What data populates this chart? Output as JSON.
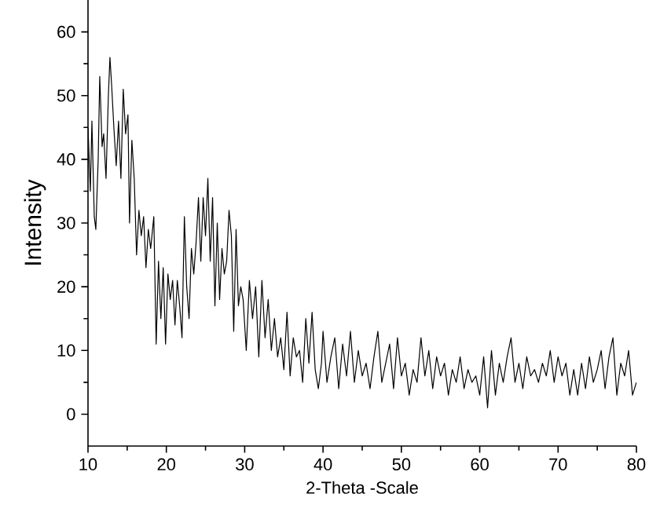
{
  "chart_data": {
    "type": "line",
    "xlabel": "2-Theta -Scale",
    "ylabel": "Intensity",
    "xlim": [
      10,
      80
    ],
    "ylim": [
      -5,
      65
    ],
    "xticks": [
      10,
      20,
      30,
      40,
      50,
      60,
      70,
      80
    ],
    "yticks": [
      0,
      10,
      20,
      30,
      40,
      50,
      60
    ],
    "color": "#000000",
    "marker": "none",
    "line_style": "solid",
    "grid": false,
    "x": [
      10,
      10.3,
      10.5,
      10.8,
      11,
      11.3,
      11.5,
      11.8,
      12,
      12.3,
      12.6,
      12.8,
      13,
      13.3,
      13.6,
      13.9,
      14.2,
      14.5,
      14.8,
      15.1,
      15.3,
      15.6,
      15.9,
      16.2,
      16.5,
      16.8,
      17.1,
      17.4,
      17.7,
      18,
      18.4,
      18.7,
      19,
      19.3,
      19.6,
      19.9,
      20.2,
      20.5,
      20.8,
      21.1,
      21.4,
      21.7,
      22,
      22.3,
      22.6,
      22.9,
      23.2,
      23.5,
      23.8,
      24.1,
      24.4,
      24.7,
      25,
      25.3,
      25.6,
      25.9,
      26.2,
      26.5,
      26.8,
      27.1,
      27.4,
      27.7,
      28,
      28.3,
      28.6,
      28.9,
      29.2,
      29.5,
      29.8,
      30.2,
      30.6,
      31,
      31.4,
      31.8,
      32.2,
      32.6,
      33,
      33.4,
      33.8,
      34.2,
      34.6,
      35,
      35.4,
      35.8,
      36.2,
      36.6,
      37,
      37.4,
      37.8,
      38.2,
      38.6,
      39,
      39.4,
      39.8,
      40,
      40.5,
      41,
      41.5,
      42,
      42.5,
      43,
      43.5,
      44,
      44.5,
      45,
      45.5,
      46,
      46.5,
      47,
      47.5,
      48,
      48.5,
      49,
      49.5,
      50,
      50.5,
      51,
      51.5,
      52,
      52.5,
      53,
      53.5,
      54,
      54.5,
      55,
      55.5,
      56,
      56.5,
      57,
      57.5,
      58,
      58.5,
      59,
      59.5,
      60,
      60.5,
      61,
      61.5,
      62,
      62.5,
      63,
      63.5,
      64,
      64.5,
      65,
      65.5,
      66,
      66.5,
      67,
      67.5,
      68,
      68.5,
      69,
      69.5,
      70,
      70.5,
      71,
      71.5,
      72,
      72.5,
      73,
      73.5,
      74,
      74.5,
      75,
      75.5,
      76,
      76.5,
      77,
      77.5,
      78,
      78.5,
      79,
      79.5,
      80
    ],
    "values": [
      45,
      35,
      46,
      31,
      29,
      40,
      53,
      42,
      44,
      37,
      50,
      56,
      52,
      45,
      39,
      46,
      37,
      51,
      44,
      47,
      30,
      43,
      37,
      25,
      32,
      28,
      31,
      23,
      29,
      26,
      31,
      11,
      24,
      15,
      23,
      11,
      22,
      18,
      21,
      14,
      21,
      17,
      12,
      31,
      20,
      15,
      26,
      22,
      27,
      34,
      24,
      34,
      28,
      37,
      24,
      34,
      17,
      30,
      18,
      26,
      22,
      24,
      32,
      28,
      13,
      29,
      17,
      20,
      18,
      10,
      21,
      15,
      20,
      9,
      21,
      12,
      18,
      10,
      15,
      9,
      12,
      7,
      16,
      6,
      12,
      9,
      10,
      5,
      15,
      8,
      16,
      7,
      4,
      8,
      13,
      5,
      9,
      12,
      4,
      11,
      6,
      13,
      5,
      10,
      6,
      8,
      4,
      9,
      13,
      5,
      8,
      11,
      4,
      12,
      6,
      8,
      3,
      7,
      5,
      12,
      6,
      10,
      4,
      9,
      6,
      8,
      3,
      7,
      5,
      9,
      4,
      7,
      5,
      6,
      3,
      9,
      1,
      10,
      3,
      8,
      5,
      9,
      12,
      5,
      8,
      4,
      9,
      6,
      7,
      5,
      8,
      6,
      10,
      5,
      9,
      6,
      8,
      3,
      7,
      3,
      8,
      4,
      9,
      5,
      7,
      10,
      4,
      9,
      12,
      3,
      8,
      6,
      10,
      3,
      5
    ]
  }
}
